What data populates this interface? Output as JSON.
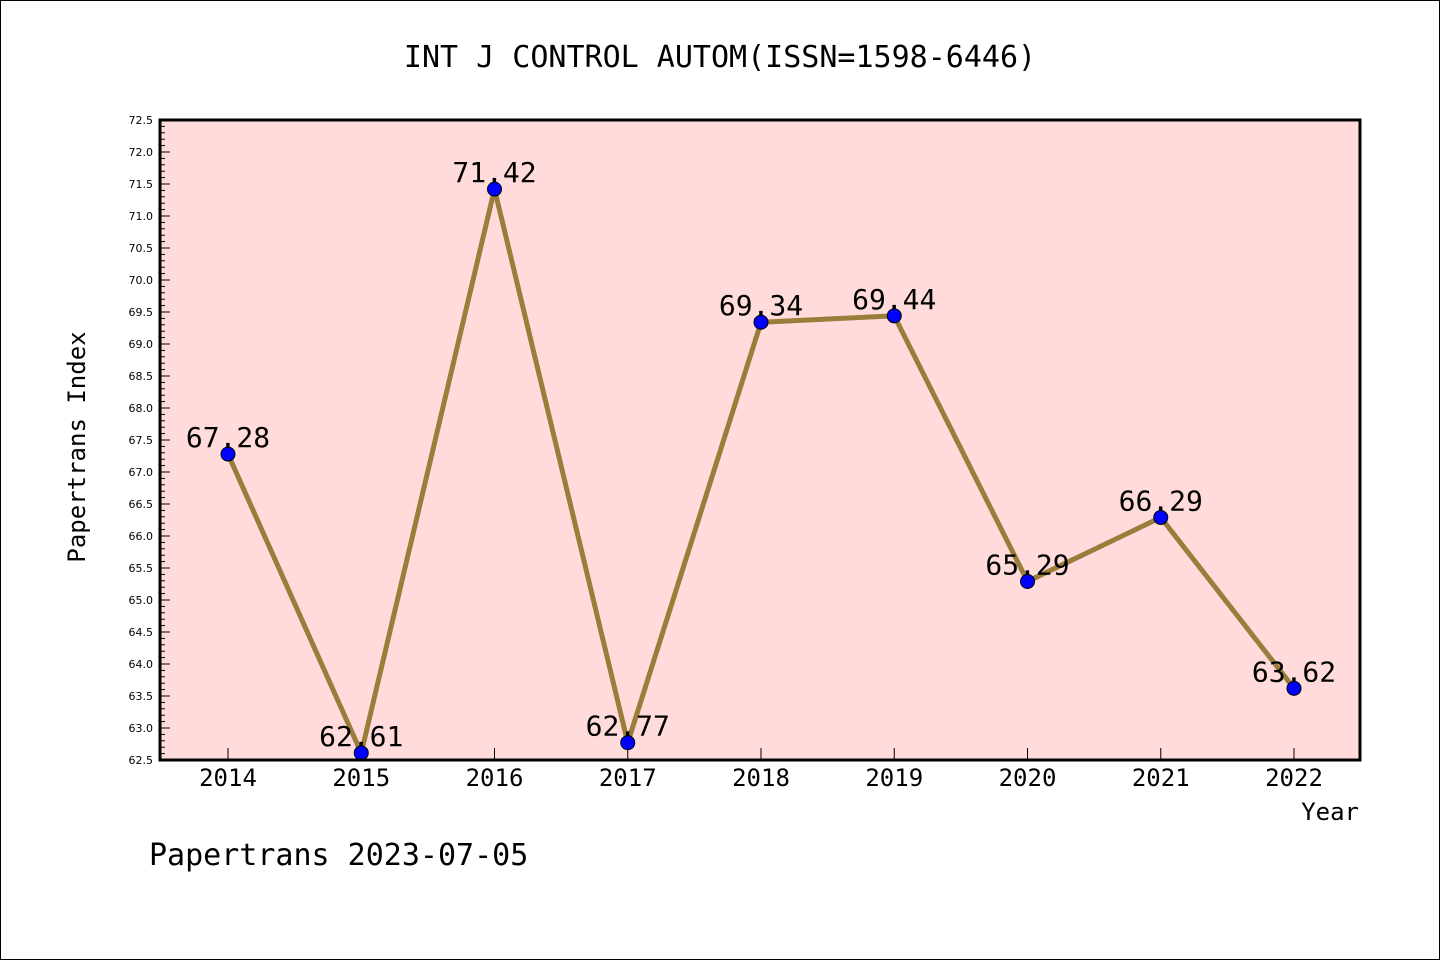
{
  "chart_data": {
    "type": "line",
    "title": "INT J CONTROL AUTOM(ISSN=1598-6446)",
    "xlabel": "Year",
    "ylabel": "Papertrans Index",
    "categories": [
      "2014",
      "2015",
      "2016",
      "2017",
      "2018",
      "2019",
      "2020",
      "2021",
      "2022"
    ],
    "series": [
      {
        "values": [
          67.28,
          62.61,
          71.42,
          62.77,
          69.34,
          69.44,
          65.29,
          66.29,
          63.62
        ]
      }
    ],
    "data_labels": [
      "67.28",
      "62.61",
      "71.42",
      "62.77",
      "69.34",
      "69.44",
      "65.29",
      "66.29",
      "63.62"
    ],
    "ylim": [
      62.5,
      72.5
    ],
    "y_tick_labels": [
      "62.5",
      "63.0",
      "63.5",
      "64.0",
      "64.5",
      "65.0",
      "65.5",
      "66.0",
      "66.5",
      "67.0",
      "67.5",
      "68.0",
      "68.5",
      "69.0",
      "69.5",
      "70.0",
      "70.5",
      "71.0",
      "71.5",
      "72.0",
      "72.5"
    ],
    "grid": false,
    "colors": {
      "plot_background": "#ffdcdb",
      "line": "#9a7d3a",
      "marker": "#0000ff",
      "axis": "#000000"
    }
  },
  "footer": "Papertrans 2023-07-05"
}
